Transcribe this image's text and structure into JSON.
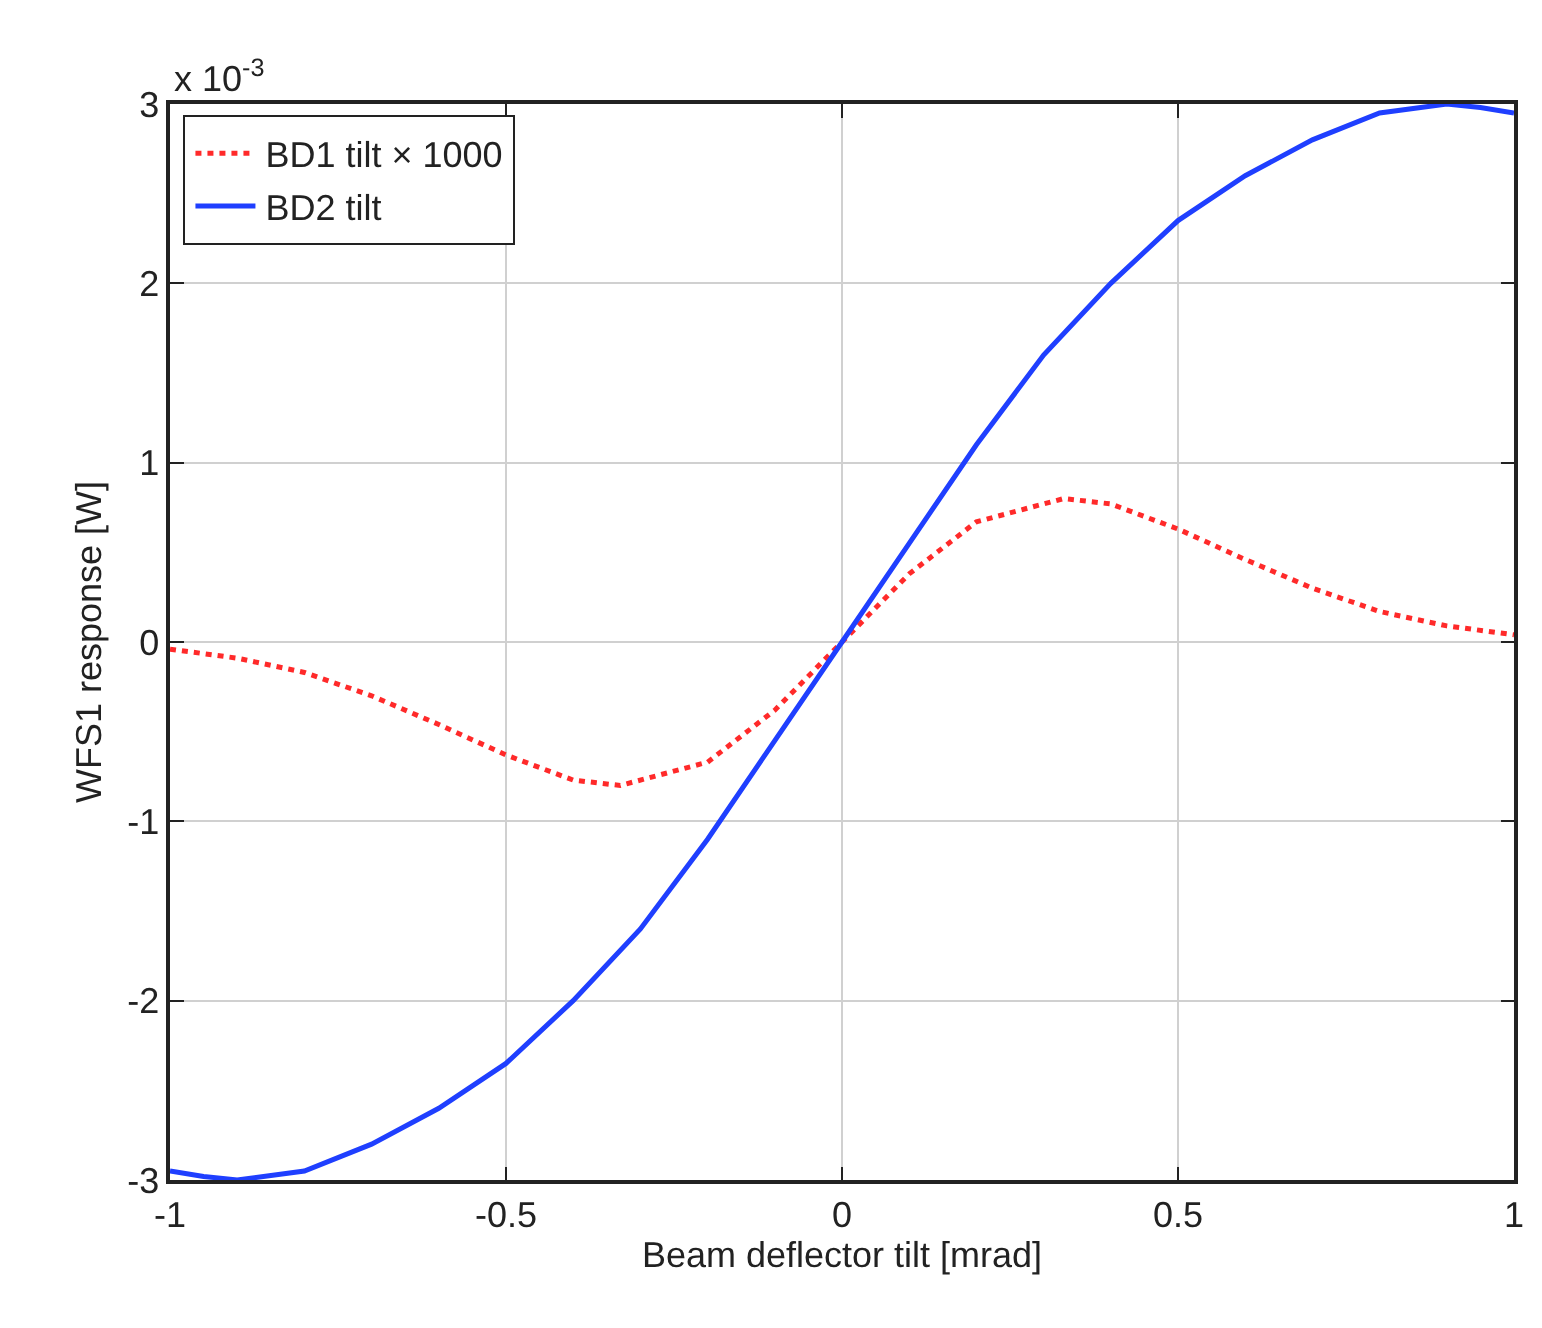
{
  "chart_data": {
    "type": "line",
    "xlabel": "Beam deflector tilt [mrad]",
    "ylabel": "WFS1 response [W]",
    "annotations": [
      "x 10$^{-3}$"
    ],
    "xlim": [
      -1,
      1
    ],
    "xticks": [
      -1,
      -0.5,
      0,
      0.5,
      1
    ],
    "ylim": [
      -3,
      3
    ],
    "yticks": [
      -3,
      -2,
      -1,
      0,
      1,
      2,
      3
    ],
    "grid": true,
    "legend": "top left",
    "marker": "none",
    "series": [
      {
        "name": "BD1 tilt × 1000",
        "color": "#ff2a2a",
        "line_style": "dotted",
        "x": [
          -1,
          -0.9,
          -0.8,
          -0.7,
          -0.6,
          -0.5,
          -0.4,
          -0.33,
          -0.2,
          -0.1,
          0,
          0.1,
          0.2,
          0.33,
          0.4,
          0.5,
          0.6,
          0.7,
          0.8,
          0.9,
          1
        ],
        "values": [
          -0.04,
          -0.09,
          -0.17,
          -0.3,
          -0.46,
          -0.63,
          -0.77,
          -0.8,
          -0.67,
          -0.38,
          0,
          0.38,
          0.67,
          0.8,
          0.77,
          0.63,
          0.46,
          0.3,
          0.17,
          0.09,
          0.04
        ]
      },
      {
        "name": "BD2 tilt",
        "color": "#1f3fff",
        "line_style": "solid",
        "x": [
          -1,
          -0.95,
          -0.9,
          -0.8,
          -0.7,
          -0.6,
          -0.5,
          -0.4,
          -0.3,
          -0.2,
          -0.1,
          0,
          0.1,
          0.2,
          0.3,
          0.4,
          0.5,
          0.6,
          0.7,
          0.8,
          0.9,
          0.95,
          1
        ],
        "values": [
          -2.95,
          -2.98,
          -3,
          -2.95,
          -2.8,
          -2.6,
          -2.35,
          -2,
          -1.6,
          -1.1,
          -0.55,
          0,
          0.55,
          1.1,
          1.6,
          2,
          2.35,
          2.6,
          2.8,
          2.95,
          3,
          2.98,
          2.95
        ]
      }
    ]
  }
}
